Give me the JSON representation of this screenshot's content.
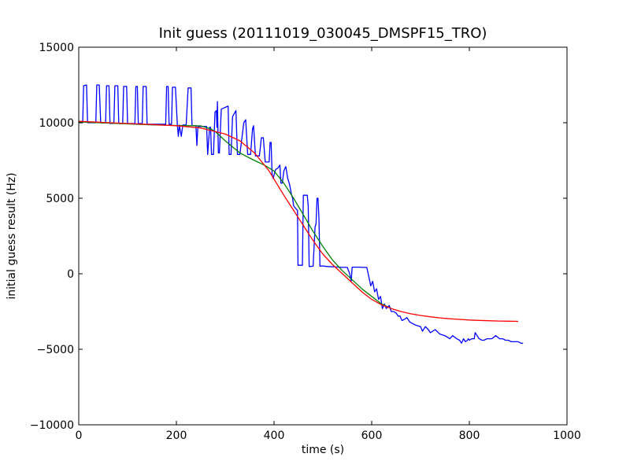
{
  "chart_data": {
    "type": "line",
    "title": "Init guess (20111019_030045_DMSPF15_TRO)",
    "xlabel": "time (s)",
    "ylabel": "initial guess result (Hz)",
    "xlim": [
      0,
      1000
    ],
    "ylim": [
      -10000,
      15000
    ],
    "xticks": [
      0,
      200,
      400,
      600,
      800,
      1000
    ],
    "yticks": [
      -10000,
      -5000,
      0,
      5000,
      10000,
      15000
    ],
    "grid": false,
    "series": [
      {
        "color": "#0000ff",
        "points": [
          [
            0,
            10000
          ],
          [
            8,
            10000
          ],
          [
            10,
            12450
          ],
          [
            16,
            12500
          ],
          [
            18,
            10000
          ],
          [
            35,
            10000
          ],
          [
            37,
            12500
          ],
          [
            42,
            12500
          ],
          [
            45,
            10000
          ],
          [
            55,
            10000
          ],
          [
            57,
            12450
          ],
          [
            62,
            12450
          ],
          [
            64,
            9950
          ],
          [
            72,
            9950
          ],
          [
            74,
            12450
          ],
          [
            80,
            12450
          ],
          [
            82,
            9950
          ],
          [
            90,
            9950
          ],
          [
            92,
            12400
          ],
          [
            98,
            12400
          ],
          [
            100,
            9950
          ],
          [
            115,
            9950
          ],
          [
            117,
            12400
          ],
          [
            120,
            12400
          ],
          [
            122,
            9950
          ],
          [
            130,
            9950
          ],
          [
            132,
            12400
          ],
          [
            138,
            12400
          ],
          [
            140,
            9900
          ],
          [
            178,
            9900
          ],
          [
            180,
            12400
          ],
          [
            183,
            12400
          ],
          [
            185,
            9900
          ],
          [
            190,
            9900
          ],
          [
            192,
            12350
          ],
          [
            198,
            12350
          ],
          [
            202,
            9850
          ],
          [
            204,
            9100
          ],
          [
            206,
            9850
          ],
          [
            210,
            9100
          ],
          [
            213,
            9850
          ],
          [
            220,
            9850
          ],
          [
            224,
            12300
          ],
          [
            230,
            12300
          ],
          [
            232,
            9800
          ],
          [
            240,
            9800
          ],
          [
            242,
            8500
          ],
          [
            244,
            9750
          ],
          [
            262,
            9750
          ],
          [
            264,
            7900
          ],
          [
            268,
            9700
          ],
          [
            270,
            9700
          ],
          [
            272,
            7900
          ],
          [
            276,
            7900
          ],
          [
            279,
            10700
          ],
          [
            282,
            10800
          ],
          [
            283,
            9700
          ],
          [
            284,
            11400
          ],
          [
            286,
            8000
          ],
          [
            288,
            8000
          ],
          [
            292,
            10900
          ],
          [
            306,
            11100
          ],
          [
            308,
            7900
          ],
          [
            312,
            7900
          ],
          [
            315,
            10400
          ],
          [
            322,
            10800
          ],
          [
            325,
            7900
          ],
          [
            330,
            7900
          ],
          [
            338,
            10000
          ],
          [
            342,
            10200
          ],
          [
            346,
            7900
          ],
          [
            352,
            7900
          ],
          [
            356,
            9600
          ],
          [
            358,
            9800
          ],
          [
            362,
            7800
          ],
          [
            370,
            7800
          ],
          [
            374,
            9000
          ],
          [
            378,
            9000
          ],
          [
            382,
            7400
          ],
          [
            390,
            7400
          ],
          [
            392,
            8700
          ],
          [
            394,
            8700
          ],
          [
            396,
            6600
          ],
          [
            398,
            6300
          ],
          [
            403,
            6900
          ],
          [
            408,
            7000
          ],
          [
            412,
            7200
          ],
          [
            414,
            6000
          ],
          [
            417,
            6000
          ],
          [
            420,
            6800
          ],
          [
            424,
            7100
          ],
          [
            428,
            6300
          ],
          [
            432,
            5900
          ],
          [
            436,
            5200
          ],
          [
            438,
            5000
          ],
          [
            440,
            4500
          ],
          [
            445,
            4300
          ],
          [
            448,
            4200
          ],
          [
            449,
            560
          ],
          [
            458,
            560
          ],
          [
            460,
            5200
          ],
          [
            468,
            5200
          ],
          [
            470,
            4500
          ],
          [
            472,
            480
          ],
          [
            480,
            500
          ],
          [
            484,
            3100
          ],
          [
            486,
            3300
          ],
          [
            488,
            5000
          ],
          [
            490,
            5000
          ],
          [
            492,
            3700
          ],
          [
            494,
            500
          ],
          [
            498,
            520
          ],
          [
            510,
            480
          ],
          [
            528,
            450
          ],
          [
            540,
            420
          ],
          [
            550,
            420
          ],
          [
            555,
            0
          ],
          [
            558,
            -500
          ],
          [
            560,
            440
          ],
          [
            575,
            440
          ],
          [
            580,
            420
          ],
          [
            590,
            420
          ],
          [
            598,
            -800
          ],
          [
            602,
            -500
          ],
          [
            606,
            -1200
          ],
          [
            610,
            -1000
          ],
          [
            614,
            -1700
          ],
          [
            618,
            -1500
          ],
          [
            622,
            -2300
          ],
          [
            626,
            -2000
          ],
          [
            630,
            -2300
          ],
          [
            636,
            -2100
          ],
          [
            640,
            -2500
          ],
          [
            645,
            -2500
          ],
          [
            650,
            -2600
          ],
          [
            654,
            -2800
          ],
          [
            658,
            -2800
          ],
          [
            662,
            -3100
          ],
          [
            668,
            -3000
          ],
          [
            672,
            -2900
          ],
          [
            678,
            -3200
          ],
          [
            690,
            -3400
          ],
          [
            700,
            -3500
          ],
          [
            704,
            -3800
          ],
          [
            710,
            -3500
          ],
          [
            716,
            -3700
          ],
          [
            720,
            -3900
          ],
          [
            730,
            -3700
          ],
          [
            740,
            -4000
          ],
          [
            750,
            -4100
          ],
          [
            760,
            -4300
          ],
          [
            766,
            -4100
          ],
          [
            774,
            -4300
          ],
          [
            780,
            -4400
          ],
          [
            784,
            -4600
          ],
          [
            788,
            -4300
          ],
          [
            792,
            -4500
          ],
          [
            796,
            -4400
          ],
          [
            798,
            -4300
          ],
          [
            800,
            -4400
          ],
          [
            805,
            -4300
          ],
          [
            810,
            -4300
          ],
          [
            812,
            -3900
          ],
          [
            816,
            -4100
          ],
          [
            820,
            -4300
          ],
          [
            826,
            -4400
          ],
          [
            830,
            -4400
          ],
          [
            836,
            -4300
          ],
          [
            842,
            -4300
          ],
          [
            846,
            -4300
          ],
          [
            850,
            -4200
          ],
          [
            854,
            -4100
          ],
          [
            858,
            -4200
          ],
          [
            862,
            -4300
          ],
          [
            868,
            -4300
          ],
          [
            874,
            -4400
          ],
          [
            880,
            -4400
          ],
          [
            886,
            -4500
          ],
          [
            892,
            -4500
          ],
          [
            896,
            -4500
          ],
          [
            900,
            -4500
          ],
          [
            906,
            -4600
          ],
          [
            910,
            -4600
          ]
        ]
      },
      {
        "color": "#008000",
        "points": [
          [
            0,
            10050
          ],
          [
            50,
            9990
          ],
          [
            100,
            9920
          ],
          [
            150,
            9860
          ],
          [
            200,
            9820
          ],
          [
            250,
            9790
          ],
          [
            270,
            9600
          ],
          [
            280,
            9400
          ],
          [
            300,
            8800
          ],
          [
            330,
            8000
          ],
          [
            360,
            7500
          ],
          [
            380,
            7200
          ],
          [
            400,
            6800
          ],
          [
            420,
            6000
          ],
          [
            440,
            5000
          ],
          [
            460,
            3900
          ],
          [
            480,
            2800
          ],
          [
            500,
            1800
          ],
          [
            520,
            900
          ],
          [
            540,
            200
          ],
          [
            560,
            -400
          ],
          [
            580,
            -1000
          ],
          [
            600,
            -1500
          ],
          [
            620,
            -2000
          ],
          [
            640,
            -2300
          ]
        ]
      },
      {
        "color": "#ff0000",
        "points": [
          [
            0,
            10100
          ],
          [
            50,
            10020
          ],
          [
            100,
            9950
          ],
          [
            150,
            9880
          ],
          [
            200,
            9800
          ],
          [
            250,
            9650
          ],
          [
            300,
            9250
          ],
          [
            330,
            8800
          ],
          [
            360,
            8000
          ],
          [
            390,
            6800
          ],
          [
            420,
            5200
          ],
          [
            440,
            4200
          ],
          [
            460,
            3200
          ],
          [
            480,
            2200
          ],
          [
            500,
            1300
          ],
          [
            520,
            600
          ],
          [
            540,
            0
          ],
          [
            560,
            -600
          ],
          [
            580,
            -1200
          ],
          [
            600,
            -1700
          ],
          [
            620,
            -2050
          ],
          [
            640,
            -2300
          ],
          [
            660,
            -2500
          ],
          [
            680,
            -2650
          ],
          [
            700,
            -2760
          ],
          [
            720,
            -2850
          ],
          [
            740,
            -2920
          ],
          [
            760,
            -2980
          ],
          [
            780,
            -3020
          ],
          [
            800,
            -3060
          ],
          [
            820,
            -3090
          ],
          [
            840,
            -3110
          ],
          [
            860,
            -3130
          ],
          [
            880,
            -3140
          ],
          [
            900,
            -3150
          ]
        ]
      }
    ]
  }
}
